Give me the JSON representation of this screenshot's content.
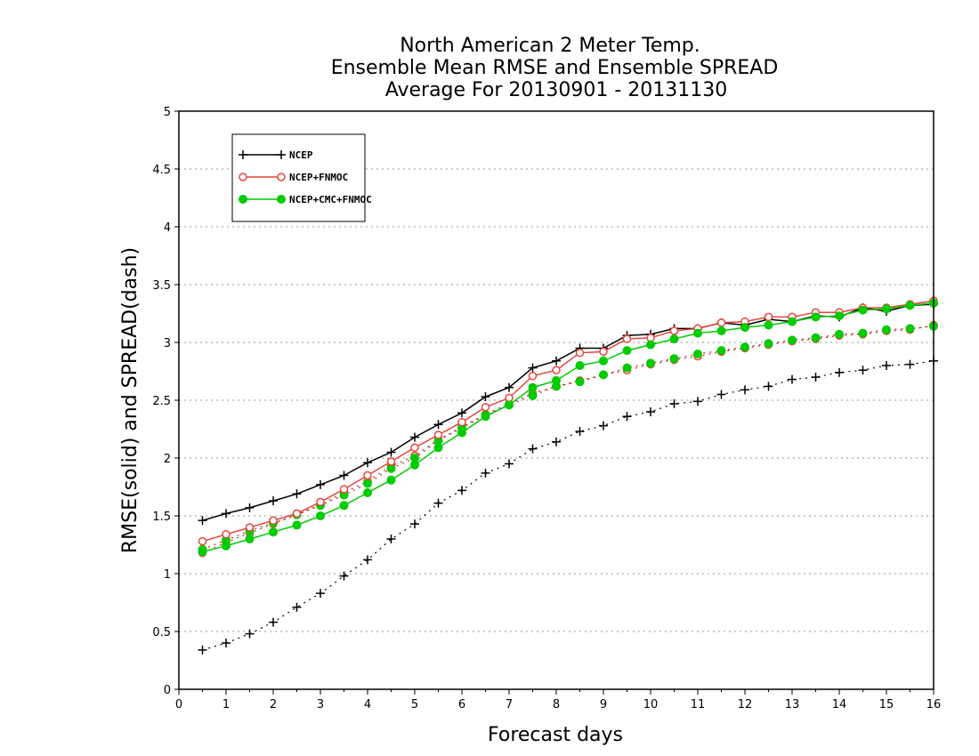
{
  "chart_data": {
    "type": "line",
    "title": [
      "North American 2 Meter Temp.",
      "Ensemble Mean RMSE and Ensemble SPREAD",
      "Average For 20130901 - 20131130"
    ],
    "xlabel": "Forecast days",
    "ylabel": "RMSE(solid) and SPREAD(dash)",
    "xlim": [
      0,
      16
    ],
    "ylim": [
      0,
      5
    ],
    "xticks": [
      "0",
      "1",
      "2",
      "3",
      "4",
      "5",
      "6",
      "7",
      "8",
      "9",
      "10",
      "11",
      "12",
      "13",
      "14",
      "15",
      "16"
    ],
    "yticks": [
      "0",
      "0.5",
      "1",
      "1.5",
      "2",
      "2.5",
      "3",
      "3.5",
      "4",
      "4.5",
      "5"
    ],
    "grid": "horizontal dotted",
    "legend_position": "top-left",
    "x": [
      0.5,
      1,
      1.5,
      2,
      2.5,
      3,
      3.5,
      4,
      4.5,
      5,
      5.5,
      6,
      6.5,
      7,
      7.5,
      8,
      8.5,
      9,
      9.5,
      10,
      10.5,
      11,
      11.5,
      12,
      12.5,
      13,
      13.5,
      14,
      14.5,
      15,
      15.5,
      16
    ],
    "series": [
      {
        "name": "NCEP",
        "color": "#000000",
        "marker": "plus",
        "rmse": [
          1.46,
          1.52,
          1.57,
          1.63,
          1.69,
          1.77,
          1.85,
          1.96,
          2.05,
          2.18,
          2.29,
          2.39,
          2.53,
          2.61,
          2.78,
          2.84,
          2.95,
          2.95,
          3.06,
          3.07,
          3.12,
          3.12,
          3.17,
          3.15,
          3.2,
          3.18,
          3.23,
          3.22,
          3.3,
          3.27,
          3.32,
          3.33
        ],
        "spread": [
          0.34,
          0.4,
          0.48,
          0.58,
          0.71,
          0.83,
          0.98,
          1.12,
          1.3,
          1.43,
          1.61,
          1.72,
          1.87,
          1.95,
          2.08,
          2.14,
          2.23,
          2.28,
          2.36,
          2.4,
          2.47,
          2.49,
          2.55,
          2.59,
          2.62,
          2.68,
          2.7,
          2.74,
          2.76,
          2.8,
          2.81,
          2.84
        ]
      },
      {
        "name": "NCEP+FNMOC",
        "color": "#e8453c",
        "marker": "open-circle",
        "rmse": [
          1.28,
          1.34,
          1.4,
          1.46,
          1.52,
          1.62,
          1.73,
          1.85,
          1.97,
          2.09,
          2.2,
          2.31,
          2.44,
          2.52,
          2.71,
          2.76,
          2.91,
          2.92,
          3.03,
          3.04,
          3.1,
          3.12,
          3.17,
          3.18,
          3.22,
          3.22,
          3.26,
          3.26,
          3.3,
          3.3,
          3.33,
          3.36
        ],
        "spread": [
          1.18,
          1.27,
          1.35,
          1.43,
          1.51,
          1.6,
          1.7,
          1.8,
          1.93,
          2.02,
          2.16,
          2.27,
          2.38,
          2.47,
          2.56,
          2.62,
          2.67,
          2.72,
          2.76,
          2.81,
          2.85,
          2.88,
          2.92,
          2.95,
          2.98,
          3.01,
          3.03,
          3.06,
          3.07,
          3.1,
          3.11,
          3.15
        ]
      },
      {
        "name": "NCEP+CMC+FNMOC",
        "color": "#00cc00",
        "marker": "filled-circle",
        "rmse": [
          1.19,
          1.24,
          1.3,
          1.36,
          1.42,
          1.5,
          1.59,
          1.7,
          1.81,
          1.94,
          2.09,
          2.22,
          2.36,
          2.46,
          2.61,
          2.67,
          2.8,
          2.84,
          2.93,
          2.98,
          3.03,
          3.08,
          3.1,
          3.13,
          3.15,
          3.18,
          3.22,
          3.23,
          3.28,
          3.29,
          3.32,
          3.34
        ],
        "spread": [
          1.21,
          1.29,
          1.37,
          1.44,
          1.51,
          1.59,
          1.68,
          1.78,
          1.91,
          2.0,
          2.15,
          2.26,
          2.37,
          2.46,
          2.54,
          2.62,
          2.66,
          2.72,
          2.78,
          2.82,
          2.86,
          2.9,
          2.93,
          2.96,
          2.99,
          3.02,
          3.04,
          3.07,
          3.08,
          3.11,
          3.12,
          3.14
        ]
      }
    ]
  }
}
